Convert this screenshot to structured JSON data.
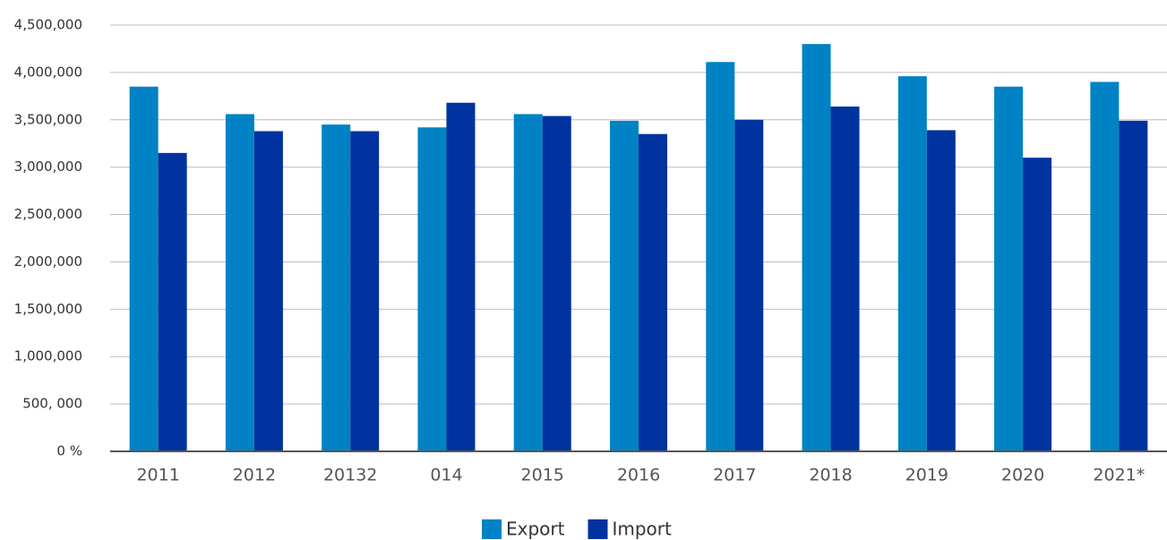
{
  "chart_data": {
    "type": "bar",
    "categories": [
      "2011",
      "2012",
      "20132",
      "014",
      "2015",
      "2016",
      "2017",
      "2018",
      "2019",
      "2020",
      "2021*"
    ],
    "series": [
      {
        "name": "Export",
        "color": "#0082c4",
        "values": [
          3850000,
          3560000,
          3450000,
          3420000,
          3560000,
          3490000,
          4110000,
          4300000,
          3960000,
          3850000,
          3900000
        ]
      },
      {
        "name": "Import",
        "color": "#0033a0",
        "values": [
          3150000,
          3380000,
          3380000,
          3680000,
          3540000,
          3350000,
          3500000,
          3640000,
          3390000,
          3100000,
          3490000
        ]
      }
    ],
    "ylim": [
      0,
      4500000
    ],
    "yticks": [
      {
        "value": 0,
        "label": "0 %"
      },
      {
        "value": 500000,
        "label": "500, 000"
      },
      {
        "value": 1000000,
        "label": "1,000,000"
      },
      {
        "value": 1500000,
        "label": "1,500,000"
      },
      {
        "value": 2000000,
        "label": "2,000,000"
      },
      {
        "value": 2500000,
        "label": "2,500,000"
      },
      {
        "value": 3000000,
        "label": "3,000,000"
      },
      {
        "value": 3500000,
        "label": "3,500,000"
      },
      {
        "value": 4000000,
        "label": "4,000,000"
      },
      {
        "value": 4500000,
        "label": "4,500,000"
      }
    ],
    "grid": true,
    "legend": "bottom"
  }
}
